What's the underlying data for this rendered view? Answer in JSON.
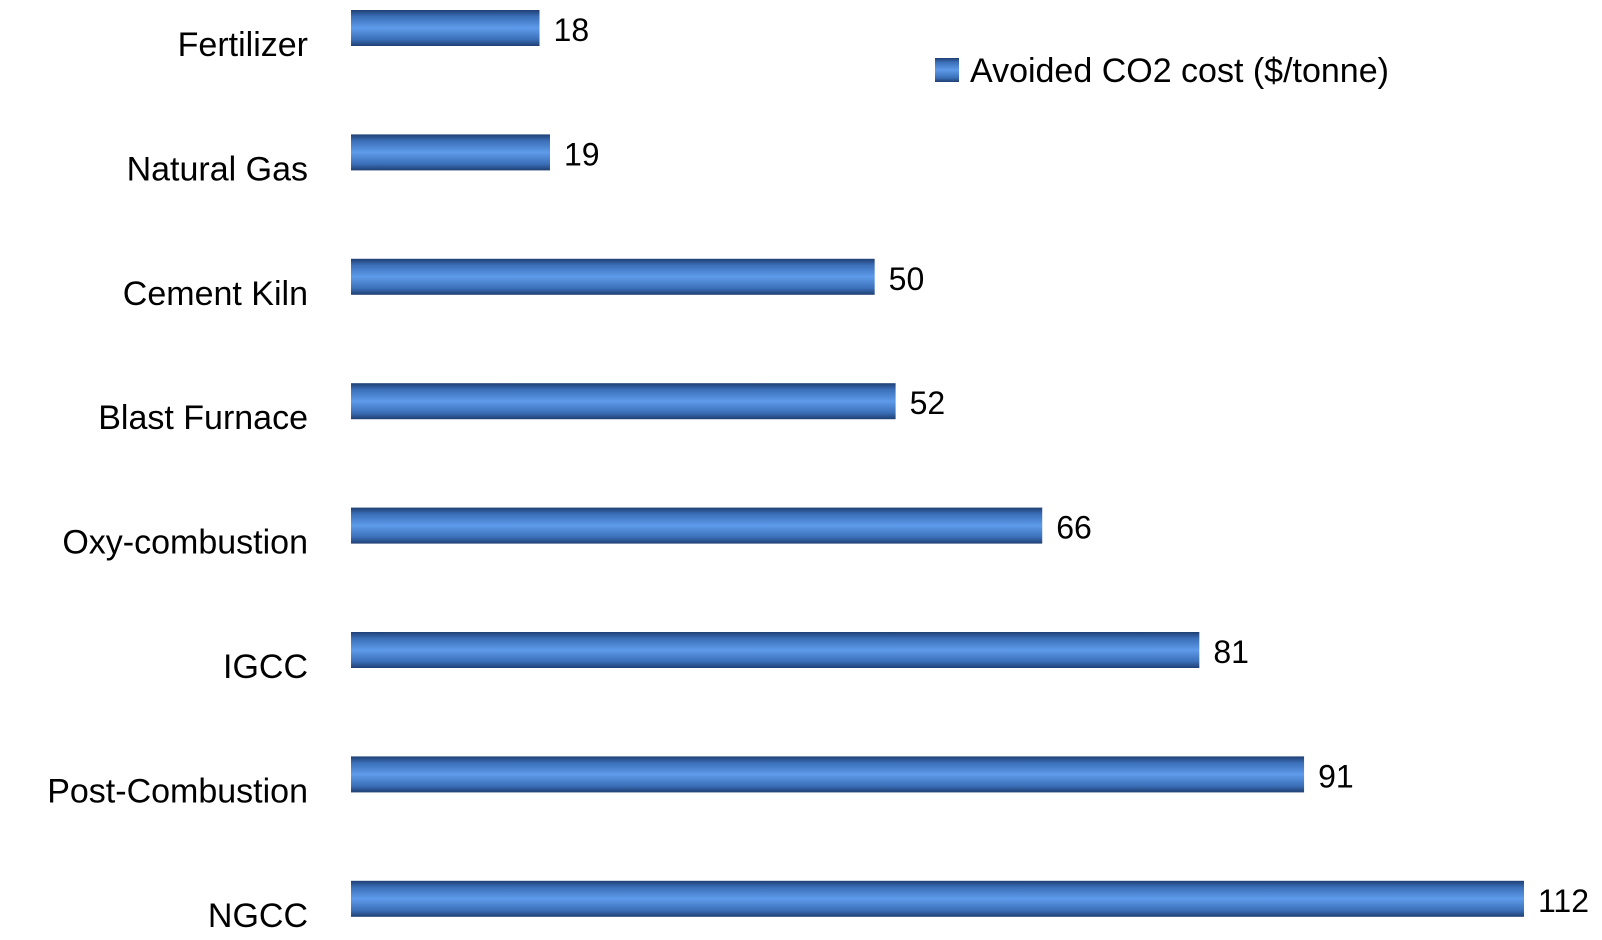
{
  "chart_data": {
    "type": "bar",
    "orientation": "horizontal",
    "categories": [
      "Fertilizer",
      "Natural Gas",
      "Cement Kiln",
      "Blast Furnace",
      "Oxy-combustion",
      "IGCC",
      "Post-Combustion",
      "NGCC"
    ],
    "series": [
      {
        "name": "Avoided CO2 cost ($/tonne)",
        "values": [
          18,
          19,
          50,
          52,
          66,
          81,
          91,
          112
        ],
        "color": "#4A86D4"
      }
    ],
    "data_labels": [
      "18",
      "19",
      "50",
      "52",
      "66",
      "81",
      "91",
      "112"
    ],
    "title": "",
    "xlabel": "",
    "ylabel": "",
    "xlim": [
      0,
      112
    ],
    "grid": false,
    "axes_visible": false,
    "legend_position": "top-right"
  }
}
